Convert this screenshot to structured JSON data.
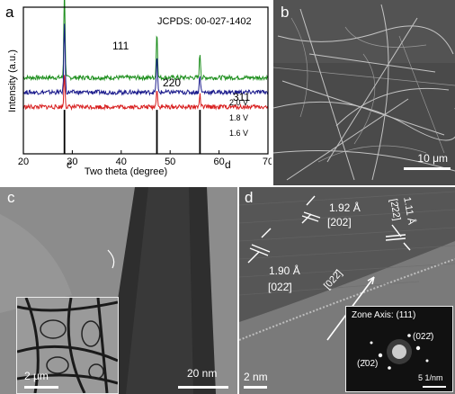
{
  "figure": {
    "panel_labels": {
      "a": "a",
      "b": "b",
      "c": "c",
      "d": "d"
    },
    "panel_a": {
      "jcpds": "JCPDS: 00-027-1402",
      "peak_labels": [
        "111",
        "220",
        "311"
      ],
      "marker_c": "c",
      "marker_d": "d"
    },
    "panel_b": {
      "scale": "10 μm"
    },
    "panel_c": {
      "scale_main": "20 nm",
      "scale_inset": "2 μm"
    },
    "panel_d": {
      "d1_value": "1.92 Å",
      "d1_plane": "[202]",
      "d2_value": "1.90 Å",
      "d2_plane": "[022̄]",
      "d3_value": "1.11 Å",
      "d3_plane": "[2̄22]",
      "direction": "[022̄]",
      "zone_axis": "Zone Axis: (111)",
      "spot_1": "(022̄)",
      "spot_2": "(2̄02)",
      "fft_scale": "5 1/nm",
      "scale": "2 nm"
    }
  },
  "chart_data": {
    "type": "line",
    "xlabel": "Two theta (degree)",
    "ylabel": "Intensity (a.u.)",
    "xlim": [
      20,
      70
    ],
    "xticks": [
      20,
      30,
      40,
      50,
      60,
      70
    ],
    "series": [
      {
        "name": "2.0 V",
        "color": "#1e8f1e",
        "baseline": 0.52,
        "peaks": [
          [
            28.4,
            0.6
          ],
          [
            47.3,
            0.31
          ],
          [
            56.1,
            0.16
          ]
        ]
      },
      {
        "name": "1.8 V",
        "color": "#1a1a8c",
        "baseline": 0.42,
        "peaks": [
          [
            28.4,
            0.48
          ],
          [
            47.3,
            0.25
          ],
          [
            56.1,
            0.12
          ]
        ]
      },
      {
        "name": "1.6 V",
        "color": "#d81e1e",
        "baseline": 0.32,
        "peaks": [
          [
            28.4,
            0.22
          ],
          [
            47.3,
            0.13
          ],
          [
            56.1,
            0.08
          ]
        ]
      }
    ],
    "reference_lines": [
      28.4,
      47.3,
      56.1
    ]
  },
  "colors": {
    "reference": "#000000",
    "frame": "#000000"
  }
}
